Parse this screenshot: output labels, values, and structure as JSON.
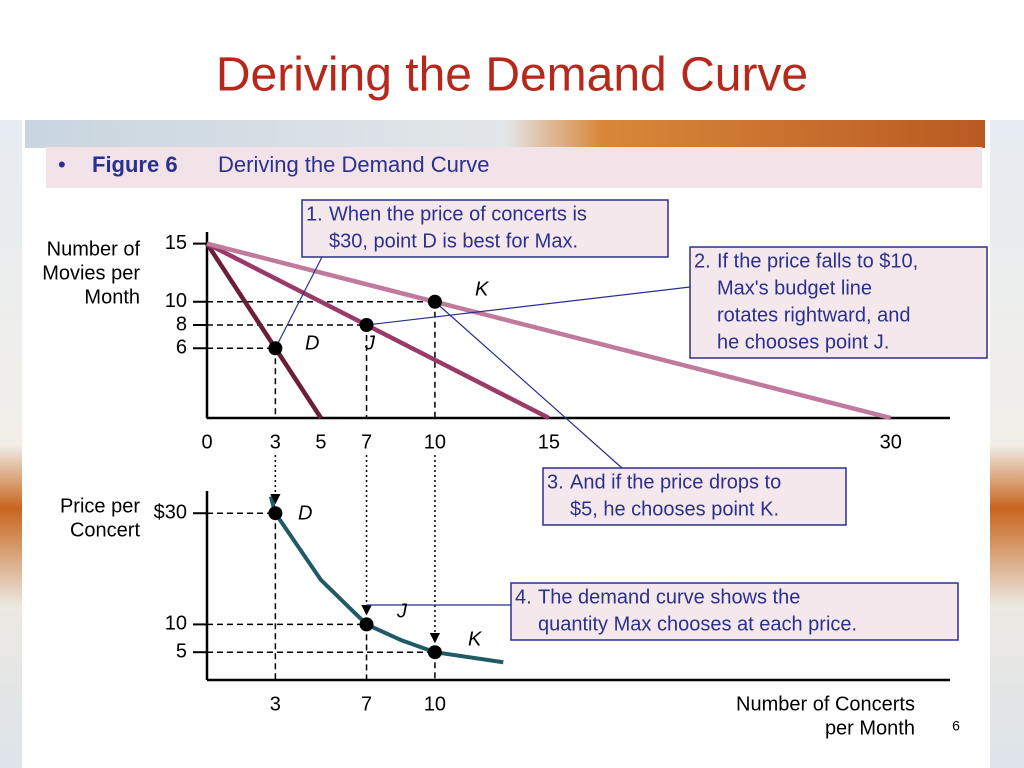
{
  "title": "Deriving the Demand Curve",
  "caption": {
    "bullet": "•",
    "label": "Figure 6",
    "text": "Deriving the Demand Curve"
  },
  "page_number": 6,
  "chart_data": [
    {
      "type": "line",
      "ylabel": [
        "Number of",
        "Movies per",
        "Month"
      ],
      "xlim": [
        0,
        32.6
      ],
      "ylim": [
        0,
        16
      ],
      "xticks": [
        0,
        3,
        5,
        7,
        10,
        15,
        30
      ],
      "yticks": [
        6,
        8,
        10,
        15
      ],
      "series": [
        {
          "color": "#6b1e3a",
          "x": [
            0,
            5
          ],
          "values": [
            15,
            0
          ]
        },
        {
          "color": "#9a3a68",
          "x": [
            0,
            15
          ],
          "values": [
            15,
            0
          ]
        },
        {
          "color": "#c07a9c",
          "x": [
            0,
            30
          ],
          "values": [
            15,
            0
          ]
        }
      ],
      "points": [
        {
          "label": "D",
          "x": 3,
          "y": 6
        },
        {
          "label": "J",
          "x": 7,
          "y": 8
        },
        {
          "label": "K",
          "x": 10,
          "y": 10
        }
      ],
      "annotations": [
        {
          "number": "1.",
          "lines": [
            "When the price of concerts is",
            "$30, point D is best for Max."
          ]
        },
        {
          "number": "2.",
          "lines": [
            "If the price falls to $10,",
            "Max's budget line",
            "rotates rightward, and",
            "he chooses point J."
          ]
        },
        {
          "number": "3.",
          "lines": [
            "And if the price drops to",
            "$5, he chooses point K."
          ]
        }
      ]
    },
    {
      "type": "line",
      "ylabel": [
        "Price per",
        "Concert"
      ],
      "xlabel": [
        "Number of Concerts",
        "per Month"
      ],
      "xlim": [
        0,
        32.6
      ],
      "ylim": [
        0,
        34
      ],
      "xticks": [
        3,
        7,
        10
      ],
      "yticks": [
        {
          "value": 30,
          "label": "$30"
        },
        10,
        5
      ],
      "series": [
        {
          "color": "#1f5a66",
          "x": [
            2.8,
            3,
            4,
            5,
            7,
            8.5,
            10,
            13
          ],
          "values": [
            33,
            30,
            24,
            18,
            10,
            7.2,
            5,
            3.2
          ]
        }
      ],
      "points": [
        {
          "label": "D",
          "x": 3,
          "y": 30
        },
        {
          "label": "J",
          "x": 7,
          "y": 10
        },
        {
          "label": "K",
          "x": 10,
          "y": 5
        }
      ],
      "annotations": [
        {
          "number": "4.",
          "lines": [
            "The demand curve shows the",
            "quantity Max chooses at each price."
          ]
        }
      ]
    }
  ]
}
